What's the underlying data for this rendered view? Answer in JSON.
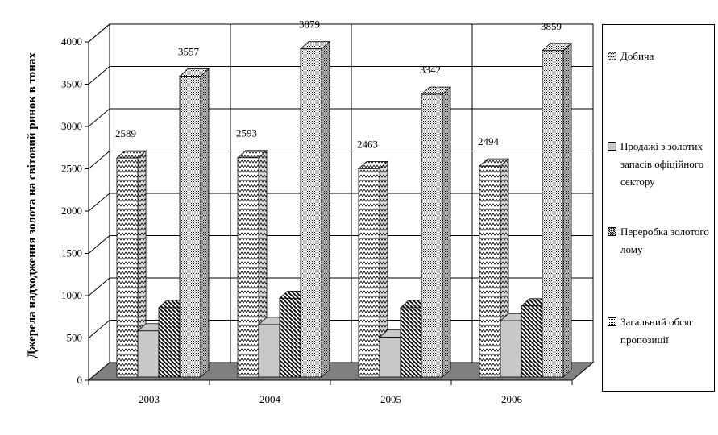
{
  "chart_data": {
    "type": "bar",
    "title": "",
    "ylabel": "Джерела надходження золота на світовий ринок в тонах",
    "xlabel": "",
    "categories": [
      "2003",
      "2004",
      "2005",
      "2006"
    ],
    "ylim": [
      0,
      4000
    ],
    "yticks": [
      0,
      500,
      1000,
      1500,
      2000,
      2500,
      3000,
      3500,
      4000
    ],
    "grid": true,
    "legend_position": "right",
    "series": [
      {
        "name": "Добича",
        "values": [
          2589,
          2593,
          2463,
          2494
        ],
        "labels": [
          "2589",
          "2593",
          "2463",
          "2494"
        ],
        "pattern": "zigzag"
      },
      {
        "name": "Продажі з золотих запасів офіційного сектору",
        "values": [
          545,
          620,
          470,
          665
        ],
        "labels": [],
        "pattern": "light"
      },
      {
        "name": "Переробка золотого лому",
        "values": [
          820,
          930,
          820,
          840
        ],
        "labels": [],
        "pattern": "diag"
      },
      {
        "name": "Загальний обсяг пропозиції",
        "values": [
          3557,
          3879,
          3342,
          3859
        ],
        "labels": [
          "3557",
          "3879",
          "3342",
          "3859"
        ],
        "pattern": "dots"
      }
    ]
  },
  "colors": {
    "floor": "#808080",
    "wall": "#ffffff",
    "grid": "#000000",
    "light_bar": "#c8c8c8"
  }
}
